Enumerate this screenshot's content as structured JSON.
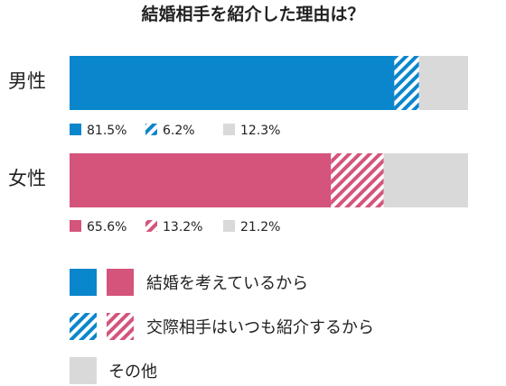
{
  "chart_data": {
    "type": "bar",
    "orientation": "horizontal",
    "stacked": true,
    "percent": true,
    "title": "結婚相手を紹介した理由は？",
    "categories": [
      "男性",
      "女性"
    ],
    "xlim": [
      0,
      100
    ],
    "series": [
      {
        "name": "結婚を考えているから",
        "values": [
          81.5,
          65.6
        ],
        "labels": [
          "81.5%",
          "65.6%"
        ],
        "pattern": "solid"
      },
      {
        "name": "交際相手はいつも紹介するから",
        "values": [
          6.2,
          13.2
        ],
        "labels": [
          "6.2%",
          "13.2%"
        ],
        "pattern": "striped"
      },
      {
        "name": "その他",
        "values": [
          12.3,
          21.2
        ],
        "labels": [
          "12.3%",
          "21.2%"
        ],
        "pattern": "solid"
      }
    ],
    "category_colors": {
      "男性": "#0a86cc",
      "女性": "#d4547c"
    },
    "other_color": "#d9d9d9",
    "legend": "bottom"
  }
}
